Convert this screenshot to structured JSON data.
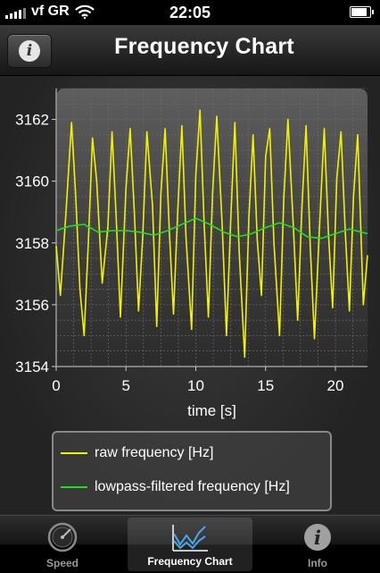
{
  "status_bar": {
    "carrier": "vf GR",
    "time": "22:05",
    "battery_level": 0.9
  },
  "nav_bar": {
    "title": "Frequency Chart",
    "info_button_icon": "info-icon"
  },
  "chart_data": {
    "type": "line",
    "xlabel": "time [s]",
    "ylabel": "",
    "xlim": [
      0,
      22.3
    ],
    "ylim": [
      3154,
      3163
    ],
    "x_ticks": [
      0,
      5,
      10,
      15,
      20
    ],
    "y_ticks": [
      3154,
      3156,
      3158,
      3160,
      3162
    ],
    "grid": true,
    "legend_position": "bottom",
    "series": [
      {
        "name": "raw frequency [Hz]",
        "color": "#f2f200",
        "x": [
          0,
          0.3,
          0.7,
          1.1,
          1.4,
          1.7,
          2.0,
          2.3,
          2.6,
          2.9,
          3.3,
          3.7,
          4.0,
          4.3,
          4.6,
          5.0,
          5.3,
          5.6,
          5.9,
          6.2,
          6.5,
          6.9,
          7.2,
          7.5,
          7.8,
          8.1,
          8.4,
          8.7,
          9.0,
          9.3,
          9.7,
          10.0,
          10.3,
          10.6,
          10.9,
          11.2,
          11.5,
          11.9,
          12.2,
          12.5,
          12.8,
          13.1,
          13.5,
          13.8,
          14.1,
          14.4,
          14.7,
          15.0,
          15.3,
          15.6,
          16.0,
          16.3,
          16.6,
          17.0,
          17.3,
          17.6,
          17.9,
          18.2,
          18.5,
          18.9,
          19.2,
          19.5,
          19.8,
          20.1,
          20.4,
          20.7,
          21.0,
          21.3,
          21.6,
          22.0,
          22.3
        ],
        "values": [
          3157.9,
          3156.3,
          3159.0,
          3161.9,
          3159.5,
          3156.5,
          3155.0,
          3158.0,
          3161.4,
          3160.0,
          3156.7,
          3158.5,
          3161.6,
          3158.8,
          3155.6,
          3159.8,
          3161.7,
          3159.0,
          3155.8,
          3158.2,
          3161.6,
          3159.2,
          3155.3,
          3159.6,
          3161.7,
          3158.4,
          3155.7,
          3159.0,
          3161.8,
          3158.2,
          3155.2,
          3160.2,
          3162.3,
          3158.6,
          3155.6,
          3159.6,
          3162.1,
          3158.5,
          3155.0,
          3158.7,
          3161.9,
          3157.8,
          3154.3,
          3158.8,
          3161.5,
          3158.1,
          3156.3,
          3160.8,
          3161.7,
          3158.0,
          3155.0,
          3159.4,
          3162.0,
          3158.4,
          3155.5,
          3159.1,
          3161.8,
          3157.9,
          3154.9,
          3158.9,
          3161.7,
          3158.3,
          3155.9,
          3160.1,
          3161.6,
          3158.4,
          3155.8,
          3159.5,
          3161.5,
          3156.0,
          3157.6
        ]
      },
      {
        "name": "lowpass-filtered frequency [Hz]",
        "color": "#22dd22",
        "x": [
          0,
          1,
          2,
          3,
          4,
          5,
          6,
          7,
          8,
          9,
          10,
          11,
          12,
          13,
          14,
          15,
          16,
          17,
          18,
          19,
          20,
          21,
          22.3
        ],
        "values": [
          3158.4,
          3158.55,
          3158.6,
          3158.35,
          3158.4,
          3158.4,
          3158.35,
          3158.25,
          3158.4,
          3158.6,
          3158.8,
          3158.6,
          3158.35,
          3158.2,
          3158.3,
          3158.5,
          3158.65,
          3158.5,
          3158.2,
          3158.15,
          3158.3,
          3158.45,
          3158.3
        ]
      }
    ]
  },
  "tab_bar": {
    "tabs": [
      {
        "label": "Speed",
        "icon": "speedometer-icon",
        "active": false
      },
      {
        "label": "Frequency Chart",
        "icon": "chart-icon",
        "active": true
      },
      {
        "label": "Info",
        "icon": "info-icon",
        "active": false
      }
    ]
  }
}
